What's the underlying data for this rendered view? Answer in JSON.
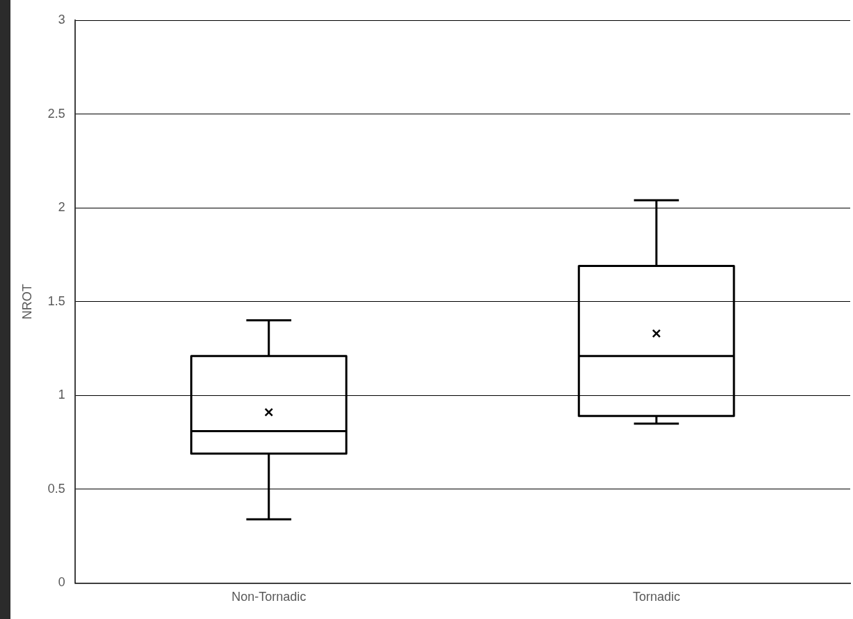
{
  "chart_data": {
    "type": "box",
    "categories": [
      "Non-Tornadic",
      "Tornadic"
    ],
    "ylabel": "NROT",
    "color": "#000000",
    "boxes": [
      {
        "low": 0.34,
        "q1": 0.69,
        "median": 0.81,
        "q3": 1.21,
        "high": 1.4,
        "mean": 0.91
      },
      {
        "low": 0.85,
        "q1": 0.89,
        "median": 1.21,
        "q3": 1.69,
        "high": 2.04,
        "mean": 1.33
      }
    ],
    "ylim": [
      0,
      3
    ],
    "yticks": [
      0,
      0.5,
      1,
      1.5,
      2,
      2.5,
      3
    ],
    "grid": "y",
    "legend": false
  }
}
